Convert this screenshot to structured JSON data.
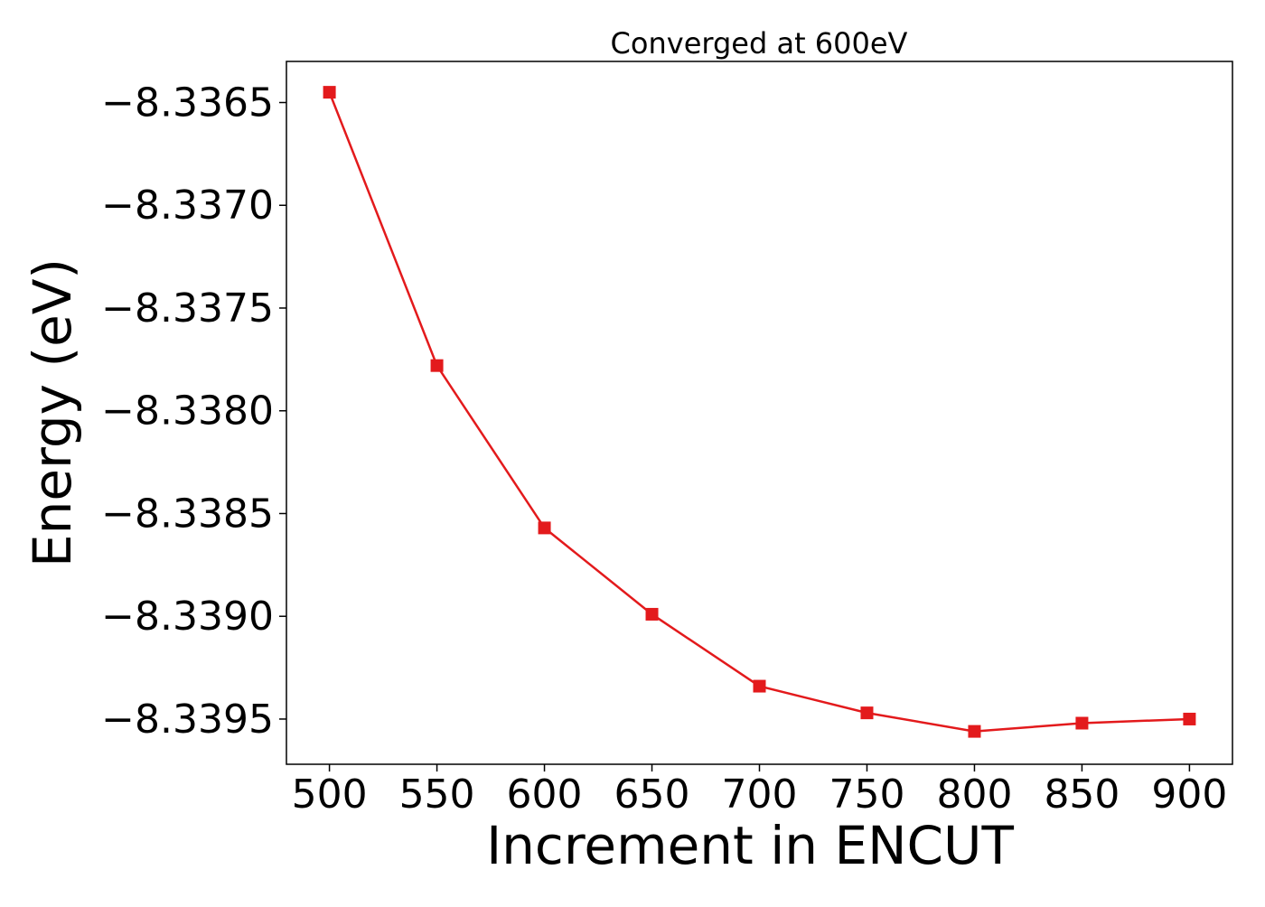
{
  "chart_data": {
    "type": "line",
    "title": "Converged at 600eV",
    "xlabel": "Increment in ENCUT",
    "ylabel": "Energy (eV)",
    "x": [
      500,
      550,
      600,
      650,
      700,
      750,
      800,
      850,
      900
    ],
    "series": [
      {
        "values": [
          -8.33645,
          -8.33778,
          -8.33857,
          -8.33899,
          -8.33934,
          -8.33947,
          -8.33956,
          -8.33952,
          -8.3395
        ],
        "color": "#e31a1c",
        "marker": "square"
      }
    ],
    "xticks": [
      500,
      550,
      600,
      650,
      700,
      750,
      800,
      850,
      900
    ],
    "xtick_labels": [
      "500",
      "550",
      "600",
      "650",
      "700",
      "750",
      "800",
      "850",
      "900"
    ],
    "yticks": [
      -8.3365,
      -8.337,
      -8.3375,
      -8.338,
      -8.3385,
      -8.339,
      -8.3395
    ],
    "ytick_labels": [
      "−8.3365",
      "−8.3370",
      "−8.3375",
      "−8.3380",
      "−8.3385",
      "−8.3390",
      "−8.3395"
    ],
    "xlim": [
      480,
      920
    ],
    "ylim": [
      -8.33972,
      -8.3363
    ],
    "grid": false,
    "legend": "none"
  }
}
